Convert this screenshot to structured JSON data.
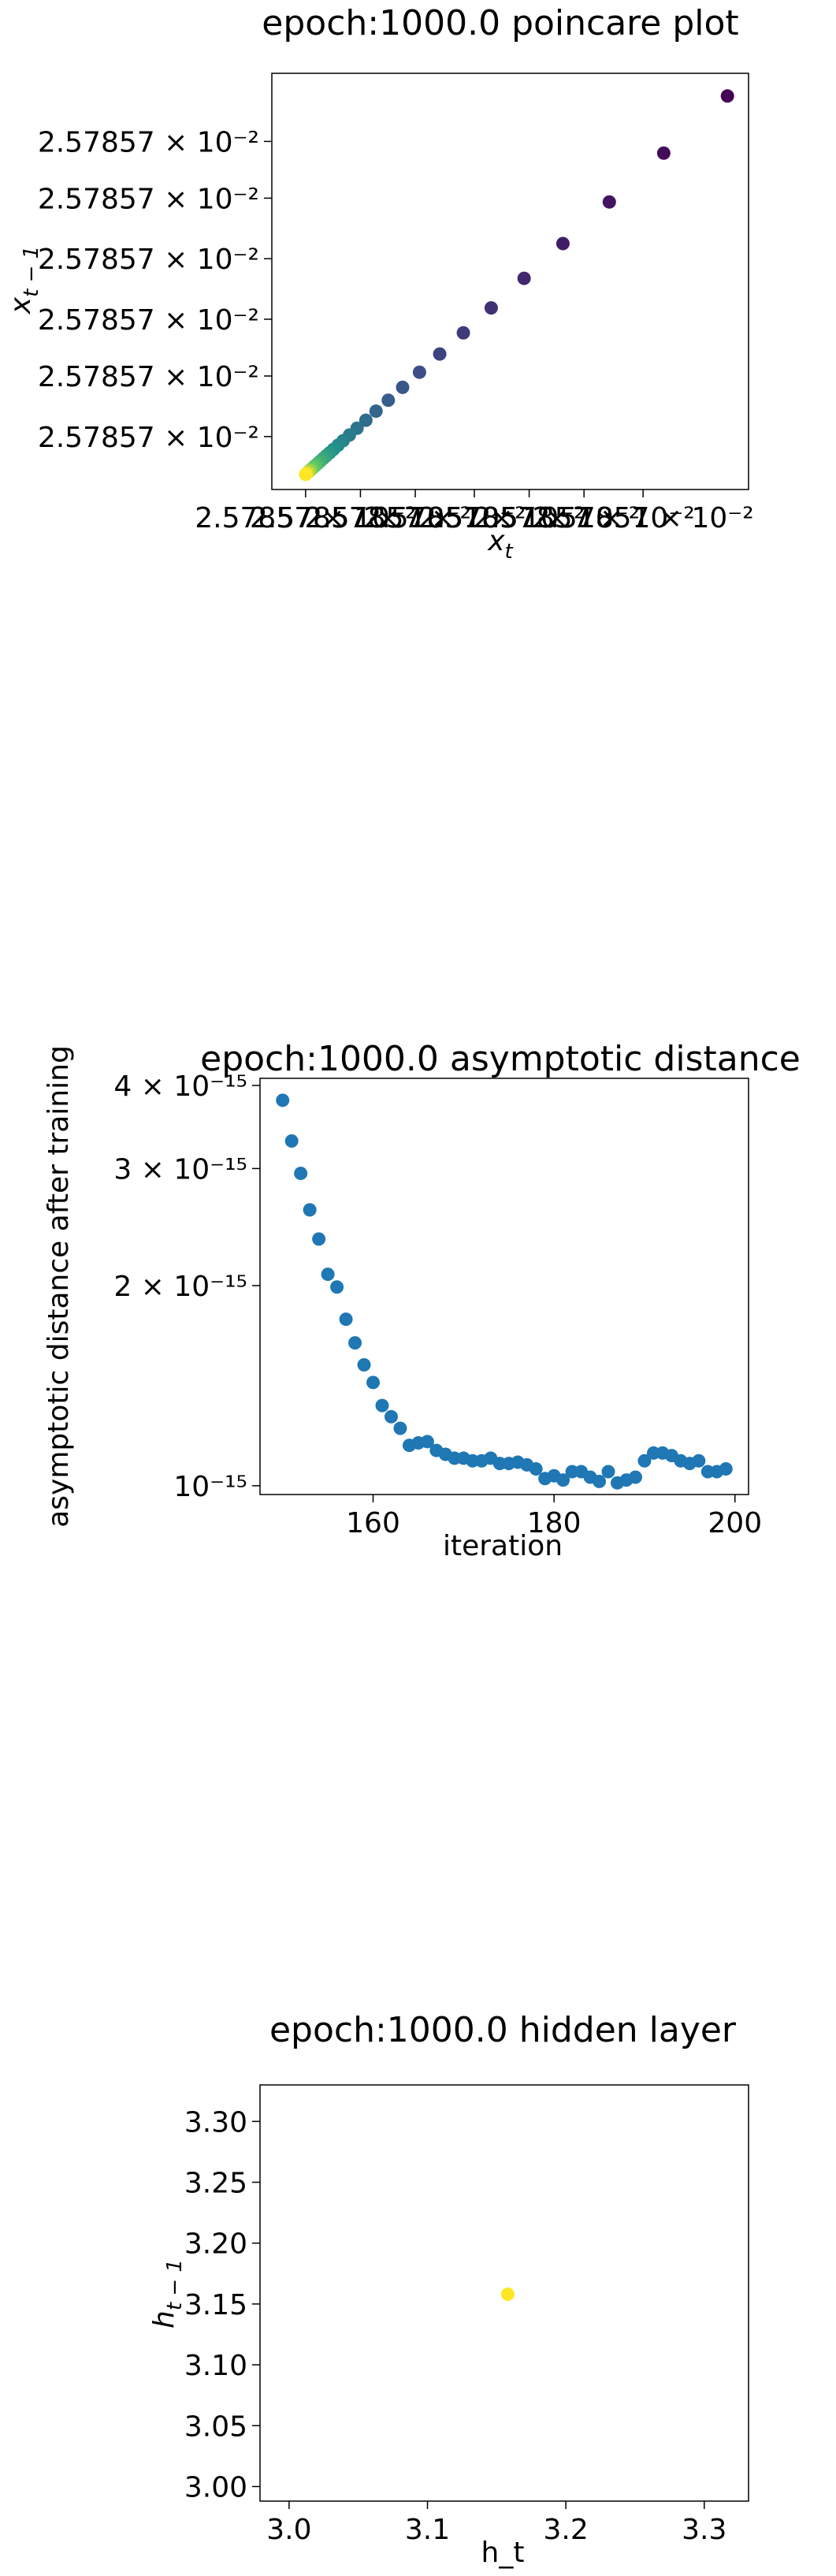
{
  "chart_data": [
    {
      "type": "scatter",
      "title": "epoch:1000.0 poincare plot",
      "xlabel": "x_t",
      "ylabel": "x_{t-1}",
      "colormap": "viridis",
      "x_tick_labels": [
        "2.57857 × 10⁻²",
        "2.57857 × 10⁻²",
        "2.57857 × 10⁻²",
        "2.57857 × 10⁻²",
        "2.57857 × 10⁻²",
        "2.57857 × 10⁻²",
        "2.57857 × 10⁻²"
      ],
      "y_tick_labels": [
        "2.57857 × 10⁻²",
        "2.57857 × 10⁻²",
        "2.57857 × 10⁻²",
        "2.57857 × 10⁻²",
        "2.57857 × 10⁻²",
        "2.57857 × 10⁻²"
      ],
      "x_ticks": [
        0.0,
        0.13,
        0.26,
        0.4,
        0.53,
        0.66,
        0.8
      ],
      "y_ticks": [
        0.1,
        0.26,
        0.41,
        0.57,
        0.73,
        0.88
      ],
      "xlim": [
        -0.08,
        1.05
      ],
      "ylim": [
        -0.04,
        1.06
      ],
      "grid": false,
      "points": {
        "x": [
          1.0,
          0.849,
          0.72,
          0.61,
          0.518,
          0.44,
          0.374,
          0.318,
          0.27,
          0.23,
          0.196,
          0.167,
          0.143,
          0.122,
          0.104,
          0.089,
          0.077,
          0.066,
          0.057,
          0.049,
          0.042,
          0.036,
          0.031,
          0.026,
          0.022,
          0.018,
          0.015,
          0.012,
          0.01,
          0.008,
          0.006,
          0.004,
          0.002,
          0.001,
          0.0
        ],
        "y": [
          1.0,
          0.849,
          0.72,
          0.61,
          0.518,
          0.44,
          0.374,
          0.318,
          0.27,
          0.23,
          0.196,
          0.167,
          0.143,
          0.122,
          0.104,
          0.089,
          0.077,
          0.066,
          0.057,
          0.049,
          0.042,
          0.036,
          0.031,
          0.026,
          0.022,
          0.018,
          0.015,
          0.012,
          0.01,
          0.008,
          0.006,
          0.004,
          0.002,
          0.001,
          0.0
        ]
      }
    },
    {
      "type": "scatter",
      "title": "epoch:1000.0 asymptotic distance",
      "xlabel": "iteration",
      "ylabel": "asymptotic distance after training",
      "yscale": "log",
      "color": "#1f77b4",
      "x_tick_labels": [
        "160",
        "180",
        "200"
      ],
      "x_ticks": [
        160,
        180,
        200
      ],
      "y_tick_labels": [
        "10⁻¹⁵",
        "2 × 10⁻¹⁵",
        "3 × 10⁻¹⁵",
        "4 × 10⁻¹⁵"
      ],
      "y_ticks": [
        1e-15,
        2e-15,
        3e-15,
        4e-15
      ],
      "xlim": [
        147.5,
        201.5
      ],
      "ylim": [
        9.7e-16,
        4.1e-15
      ],
      "grid": false,
      "points": {
        "x": [
          150,
          151,
          152,
          153,
          154,
          155,
          156,
          157,
          158,
          159,
          160,
          161,
          162,
          163,
          164,
          165,
          166,
          167,
          168,
          169,
          170,
          171,
          172,
          173,
          174,
          175,
          176,
          177,
          178,
          179,
          180,
          181,
          182,
          183,
          184,
          185,
          186,
          187,
          188,
          189,
          190,
          191,
          192,
          193,
          194,
          195,
          196,
          197,
          198,
          199
        ],
        "y": [
          3.8e-15,
          3.3e-15,
          2.95e-15,
          2.6e-15,
          2.35e-15,
          2.08e-15,
          1.99e-15,
          1.78e-15,
          1.64e-15,
          1.52e-15,
          1.43e-15,
          1.32e-15,
          1.27e-15,
          1.22e-15,
          1.15e-15,
          1.16e-15,
          1.165e-15,
          1.13e-15,
          1.115e-15,
          1.1e-15,
          1.1e-15,
          1.09e-15,
          1.09e-15,
          1.1e-15,
          1.08e-15,
          1.08e-15,
          1.085e-15,
          1.075e-15,
          1.06e-15,
          1.025e-15,
          1.035e-15,
          1.02e-15,
          1.05e-15,
          1.05e-15,
          1.03e-15,
          1.015e-15,
          1.05e-15,
          1.01e-15,
          1.02e-15,
          1.03e-15,
          1.09e-15,
          1.12e-15,
          1.12e-15,
          1.11e-15,
          1.09e-15,
          1.08e-15,
          1.09e-15,
          1.05e-15,
          1.05e-15,
          1.06e-15
        ]
      }
    },
    {
      "type": "scatter",
      "title": "epoch:1000.0 hidden layer",
      "xlabel": "h_t",
      "ylabel": "h_{t-1}",
      "color": "#fde725",
      "x_tick_labels": [
        "3.0",
        "3.1",
        "3.2",
        "3.3"
      ],
      "x_ticks": [
        3.0,
        3.1,
        3.2,
        3.3
      ],
      "y_tick_labels": [
        "3.00",
        "3.05",
        "3.10",
        "3.15",
        "3.20",
        "3.25",
        "3.30"
      ],
      "y_ticks": [
        3.0,
        3.05,
        3.1,
        3.15,
        3.2,
        3.25,
        3.3
      ],
      "xlim": [
        2.979,
        3.332
      ],
      "ylim": [
        2.988,
        3.33
      ],
      "grid": false,
      "points": {
        "x": [
          3.158
        ],
        "y": [
          3.158
        ]
      }
    }
  ]
}
